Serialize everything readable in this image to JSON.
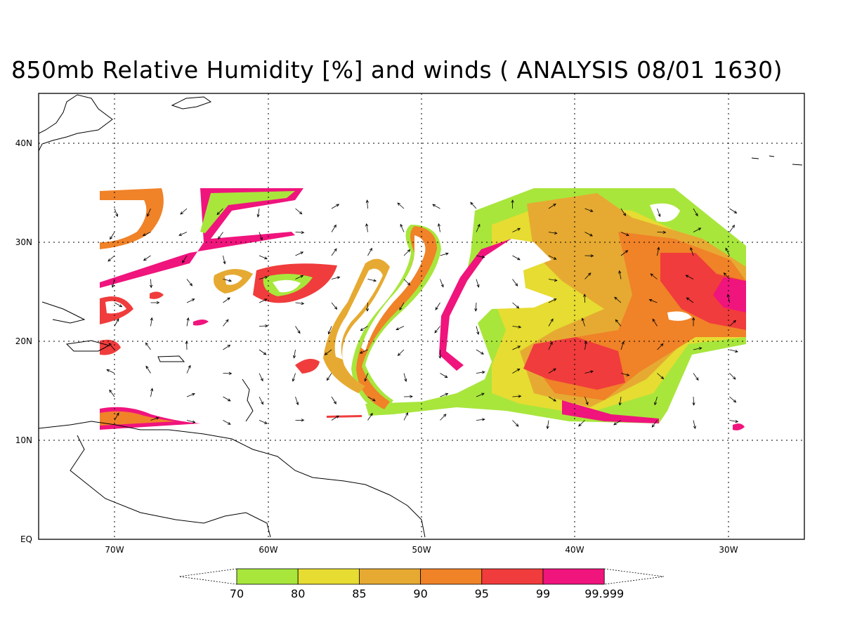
{
  "title": "850mb Relative Humidity [%] and winds ( ANALYSIS 08/01 1630)",
  "map": {
    "lon_range": [
      "75W",
      "25W"
    ],
    "lat_range": [
      "0",
      "45N"
    ],
    "grid": "dotted",
    "lon_ticks": [
      "70W",
      "60W",
      "50W",
      "40W",
      "30W"
    ],
    "lat_ticks": [
      "40N",
      "30N",
      "20N",
      "10N",
      "EQ"
    ],
    "variable": "850mb relative humidity",
    "overlay": "wind vectors"
  },
  "colorbar": {
    "labels": [
      "70",
      "80",
      "85",
      "90",
      "95",
      "99",
      "99.999"
    ],
    "colors": [
      "#a8e63c",
      "#e6dc32",
      "#e6aa32",
      "#f08228",
      "#f03c3c",
      "#f0147d"
    ]
  }
}
